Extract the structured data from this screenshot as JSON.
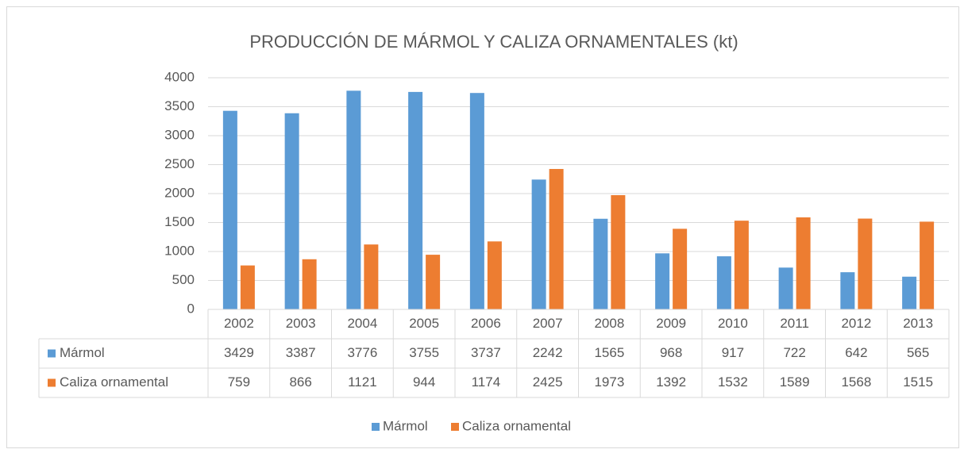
{
  "chart_data": {
    "type": "bar",
    "title": "PRODUCCIÓN DE MÁRMOL Y CALIZA ORNAMENTALES (kt)",
    "categories": [
      "2002",
      "2003",
      "2004",
      "2005",
      "2006",
      "2007",
      "2008",
      "2009",
      "2010",
      "2011",
      "2012",
      "2013"
    ],
    "series": [
      {
        "name": "Mármol",
        "color": "#5b9bd5",
        "values": [
          3429,
          3387,
          3776,
          3755,
          3737,
          2242,
          1565,
          968,
          917,
          722,
          642,
          565
        ]
      },
      {
        "name": "Caliza ornamental",
        "color": "#ed7d31",
        "values": [
          759,
          866,
          1121,
          944,
          1174,
          2425,
          1973,
          1392,
          1532,
          1589,
          1568,
          1515
        ]
      }
    ],
    "ylim": [
      0,
      4000
    ],
    "yticks": [
      0,
      500,
      1000,
      1500,
      2000,
      2500,
      3000,
      3500,
      4000
    ],
    "grid": true,
    "legend": "bottom",
    "data_table": true
  }
}
